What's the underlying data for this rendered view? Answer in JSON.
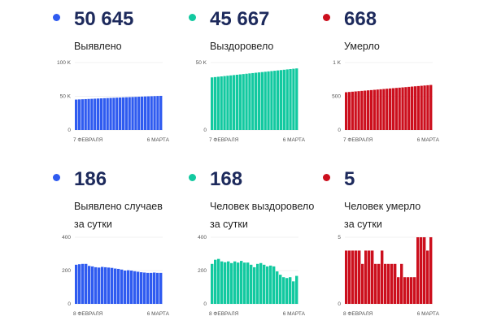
{
  "panels": [
    {
      "id": "detected",
      "value": "50 645",
      "label": "Выявлено",
      "label2": "",
      "color": "#2f5bf0"
    },
    {
      "id": "recovered",
      "value": "45 667",
      "label": "Выздоровело",
      "label2": "",
      "color": "#12c9a0"
    },
    {
      "id": "deaths",
      "value": "668",
      "label": "Умерло",
      "label2": "",
      "color": "#cc0f1d"
    },
    {
      "id": "detected_daily",
      "value": "186",
      "label": "Выявлено случаев",
      "label2": "за сутки",
      "color": "#2f5bf0"
    },
    {
      "id": "recovered_daily",
      "value": "168",
      "label": "Человек выздоровело",
      "label2": "за сутки",
      "color": "#12c9a0"
    },
    {
      "id": "deaths_daily",
      "value": "5",
      "label": "Человек умерло",
      "label2": "за сутки",
      "color": "#cc0f1d"
    }
  ],
  "chart_data": [
    {
      "type": "bar",
      "x_start": "7 ФЕВРАЛЯ",
      "x_end": "6 МАРТА",
      "ylim": [
        0,
        100000
      ],
      "yticks": [
        0,
        50000,
        100000
      ],
      "ytick_labels": [
        "0",
        "50 K",
        "100 K"
      ],
      "grid": true,
      "values": [
        45110,
        45350,
        45590,
        45820,
        46040,
        46260,
        46480,
        46700,
        46920,
        47140,
        47350,
        47560,
        47770,
        47980,
        48180,
        48380,
        48580,
        48780,
        48970,
        49160,
        49350,
        49540,
        49730,
        49910,
        50090,
        50270,
        50460,
        50645
      ]
    },
    {
      "type": "bar",
      "x_start": "7 ФЕВРАЛЯ",
      "x_end": "6 МАРТА",
      "ylim": [
        0,
        50000
      ],
      "yticks": [
        0,
        50000
      ],
      "ytick_labels": [
        "0",
        "50 K"
      ],
      "grid": true,
      "values": [
        39000,
        39247,
        39494,
        39741,
        39988,
        40235,
        40482,
        40729,
        40976,
        41223,
        41470,
        41717,
        41964,
        42211,
        42458,
        42705,
        42952,
        43199,
        43446,
        43693,
        43940,
        44187,
        44434,
        44681,
        44928,
        45175,
        45422,
        45667
      ]
    },
    {
      "type": "bar",
      "x_start": "7 ФЕВРАЛЯ",
      "x_end": "6 МАРТА",
      "ylim": [
        0,
        1000
      ],
      "yticks": [
        0,
        500,
        1000
      ],
      "ytick_labels": [
        "0",
        "500",
        "1 K"
      ],
      "grid": true,
      "values": [
        560,
        564,
        568,
        572,
        576,
        580,
        584,
        588,
        592,
        596,
        600,
        604,
        608,
        612,
        616,
        620,
        624,
        628,
        632,
        636,
        640,
        644,
        648,
        652,
        656,
        660,
        664,
        668
      ]
    },
    {
      "type": "bar",
      "x_start": "8 ФЕВРАЛЯ",
      "x_end": "6 МАРТА",
      "ylim": [
        0,
        400
      ],
      "yticks": [
        0,
        200,
        400
      ],
      "ytick_labels": [
        "0",
        "200",
        "400"
      ],
      "grid": true,
      "values": [
        235,
        238,
        240,
        240,
        228,
        225,
        220,
        218,
        222,
        220,
        218,
        216,
        212,
        210,
        206,
        200,
        202,
        200,
        196,
        193,
        190,
        188,
        186,
        186,
        188,
        186,
        186
      ]
    },
    {
      "type": "bar",
      "x_start": "8 ФЕВРАЛЯ",
      "x_end": "6 МАРТА",
      "ylim": [
        0,
        400
      ],
      "yticks": [
        0,
        200,
        400
      ],
      "ytick_labels": [
        "0",
        "200",
        "400"
      ],
      "grid": true,
      "values": [
        240,
        265,
        270,
        255,
        250,
        255,
        245,
        255,
        248,
        258,
        248,
        248,
        235,
        220,
        240,
        245,
        235,
        225,
        230,
        225,
        195,
        175,
        160,
        155,
        160,
        135,
        168
      ]
    },
    {
      "type": "bar",
      "x_start": "8 ФЕВРАЛЯ",
      "x_end": "6 МАРТА",
      "ylim": [
        0,
        5
      ],
      "yticks": [
        0,
        5
      ],
      "ytick_labels": [
        "0",
        "5"
      ],
      "grid": true,
      "values": [
        4,
        4,
        4,
        4,
        4,
        3,
        4,
        4,
        4,
        3,
        3,
        4,
        3,
        3,
        3,
        3,
        2,
        3,
        2,
        2,
        2,
        2,
        5,
        5,
        5,
        4,
        5
      ]
    }
  ]
}
